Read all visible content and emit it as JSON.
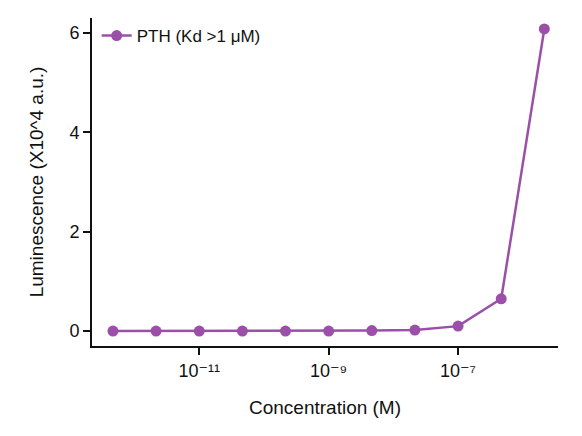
{
  "chart_data": {
    "type": "line",
    "x_label": "Concentration (M)",
    "y_label": "Luminescence (X10^4 a.u.)",
    "x": [
      4.64e-13,
      2.15e-12,
      1e-11,
      4.64e-11,
      2.15e-10,
      1e-09,
      4.64e-09,
      2.15e-08,
      1e-07,
      4.64e-07,
      2.15e-06
    ],
    "series": [
      {
        "name": "PTH (Kd >1 μM)",
        "color": "#9b4fa8",
        "marker": "circle",
        "line_style": "solid",
        "values": [
          0,
          0,
          0,
          0,
          0,
          0,
          0.01,
          0.02,
          0.1,
          0.65,
          6.08
        ]
      }
    ],
    "log": "x",
    "xlim": [
      2.2e-13,
      3.5e-06
    ],
    "xticks": [
      {
        "value": 1e-11,
        "label": "10⁻¹¹"
      },
      {
        "value": 1e-09,
        "label": "10⁻⁹"
      },
      {
        "value": 1e-07,
        "label": "10⁻⁷"
      }
    ],
    "ylim": [
      -0.3,
      6.3
    ],
    "yticks": [
      0,
      2,
      4,
      6
    ],
    "grid": false,
    "legend": "upper left"
  }
}
